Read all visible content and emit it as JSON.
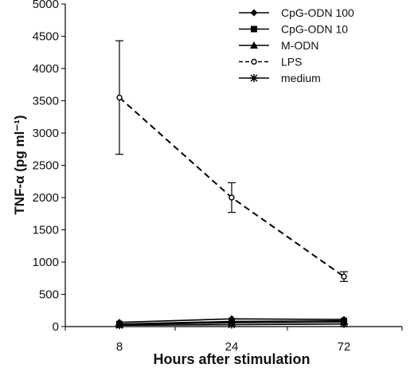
{
  "chart_data": {
    "type": "line",
    "title": "",
    "xlabel": "Hours after stimulation",
    "ylabel": "TNF-α (pg ml⁻¹)",
    "categories": [
      "8",
      "24",
      "72"
    ],
    "ylim": [
      0,
      5000
    ],
    "yticks": [
      0,
      500,
      1000,
      1500,
      2000,
      2500,
      3000,
      3500,
      4000,
      4500,
      5000
    ],
    "grid": false,
    "legend_position": "top-right",
    "series": [
      {
        "name": "CpG-ODN 100",
        "values": [
          65,
          120,
          110
        ],
        "marker": "diamond",
        "line": "solid"
      },
      {
        "name": "CpG-ODN 10",
        "values": [
          40,
          80,
          90
        ],
        "marker": "square",
        "line": "solid"
      },
      {
        "name": "M-ODN",
        "values": [
          30,
          60,
          70
        ],
        "marker": "triangle",
        "line": "solid"
      },
      {
        "name": "LPS",
        "values": [
          3550,
          2000,
          775
        ],
        "errors": [
          880,
          230,
          75
        ],
        "marker": "circle-open",
        "line": "dashed"
      },
      {
        "name": "medium",
        "values": [
          20,
          30,
          40
        ],
        "marker": "star",
        "line": "solid"
      }
    ]
  }
}
